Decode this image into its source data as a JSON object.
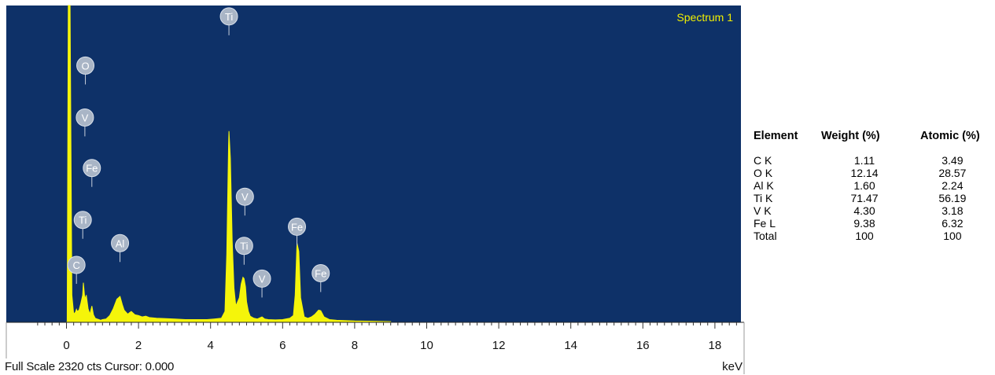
{
  "spectrum": {
    "title": "Spectrum 1",
    "footer": "Full Scale 2320 cts Cursor: 0.000",
    "unit": "keV",
    "colors": {
      "background": "#0e3168",
      "spectrum_fill": "#f5f50a",
      "marker_bubble": "#a9b5c6",
      "marker_text": "#ffffff",
      "title": "#f2f000"
    }
  },
  "chart_data": {
    "type": "area",
    "title": "Spectrum 1",
    "xlabel": "keV",
    "ylabel": "",
    "xlim": [
      -0.8,
      18.75
    ],
    "ylim": [
      0,
      2320
    ],
    "x_ticks": [
      0,
      2,
      4,
      6,
      8,
      10,
      12,
      14,
      16,
      18
    ],
    "series": [
      {
        "x": [
          -0.1,
          0.0,
          0.02,
          0.05,
          0.1,
          0.15,
          0.2,
          0.25,
          0.277,
          0.3,
          0.35,
          0.4,
          0.45,
          0.47,
          0.5,
          0.525,
          0.55,
          0.6,
          0.65,
          0.705,
          0.75,
          0.8,
          0.85,
          0.9,
          0.95,
          1.0,
          1.1,
          1.2,
          1.3,
          1.4,
          1.486,
          1.55,
          1.6,
          1.7,
          1.75,
          1.8,
          1.9,
          2.0,
          2.1,
          2.2,
          2.3,
          2.5,
          2.7,
          3.0,
          3.3,
          3.6,
          3.9,
          4.1,
          4.3,
          4.4,
          4.45,
          4.5,
          4.51,
          4.55,
          4.6,
          4.65,
          4.7,
          4.8,
          4.85,
          4.9,
          4.93,
          4.97,
          5.0,
          5.05,
          5.1,
          5.2,
          5.3,
          5.427,
          5.5,
          5.6,
          5.8,
          6.0,
          6.2,
          6.3,
          6.35,
          6.4,
          6.45,
          6.5,
          6.6,
          6.7,
          6.8,
          6.9,
          7.0,
          7.058,
          7.15,
          7.3,
          7.5,
          8.0,
          8.5,
          9.0
        ],
        "values": [
          0,
          0,
          5,
          2320,
          2320,
          200,
          60,
          75,
          95,
          80,
          90,
          140,
          200,
          290,
          200,
          170,
          200,
          100,
          60,
          120,
          55,
          30,
          25,
          20,
          15,
          20,
          25,
          50,
          100,
          170,
          190,
          130,
          90,
          60,
          70,
          80,
          55,
          50,
          40,
          45,
          35,
          30,
          28,
          25,
          20,
          20,
          20,
          25,
          30,
          80,
          500,
          1300,
          1400,
          1200,
          600,
          250,
          120,
          180,
          280,
          330,
          320,
          260,
          150,
          80,
          45,
          30,
          25,
          40,
          25,
          20,
          18,
          20,
          30,
          50,
          200,
          580,
          520,
          180,
          40,
          30,
          40,
          60,
          90,
          85,
          40,
          20,
          15,
          10,
          8,
          5
        ]
      }
    ],
    "peak_labels": [
      {
        "element": "C",
        "x": 0.277,
        "label_y": 420
      },
      {
        "element": "Ti",
        "x": 0.452,
        "label_y": 750
      },
      {
        "element": "Fe",
        "x": 0.705,
        "label_y": 1130
      },
      {
        "element": "V",
        "x": 0.511,
        "label_y": 1500
      },
      {
        "element": "O",
        "x": 0.525,
        "label_y": 1880
      },
      {
        "element": "Al",
        "x": 1.486,
        "label_y": 580
      },
      {
        "element": "Ti",
        "x": 4.51,
        "label_y": 2240
      },
      {
        "element": "V",
        "x": 4.952,
        "label_y": 920
      },
      {
        "element": "Ti",
        "x": 4.931,
        "label_y": 560
      },
      {
        "element": "V",
        "x": 5.427,
        "label_y": 320
      },
      {
        "element": "Fe",
        "x": 6.398,
        "label_y": 700
      },
      {
        "element": "Fe",
        "x": 7.058,
        "label_y": 360
      }
    ]
  },
  "results_table": {
    "headers": [
      "Element",
      "Weight (%)",
      "Atomic (%)"
    ],
    "rows": [
      [
        "C K",
        "1.11",
        "3.49"
      ],
      [
        "O K",
        "12.14",
        "28.57"
      ],
      [
        "Al K",
        "1.60",
        "2.24"
      ],
      [
        "Ti K",
        "71.47",
        "56.19"
      ],
      [
        "V K",
        "4.30",
        "3.18"
      ],
      [
        "Fe L",
        "9.38",
        "6.32"
      ],
      [
        "Total",
        "100",
        "100"
      ]
    ]
  }
}
